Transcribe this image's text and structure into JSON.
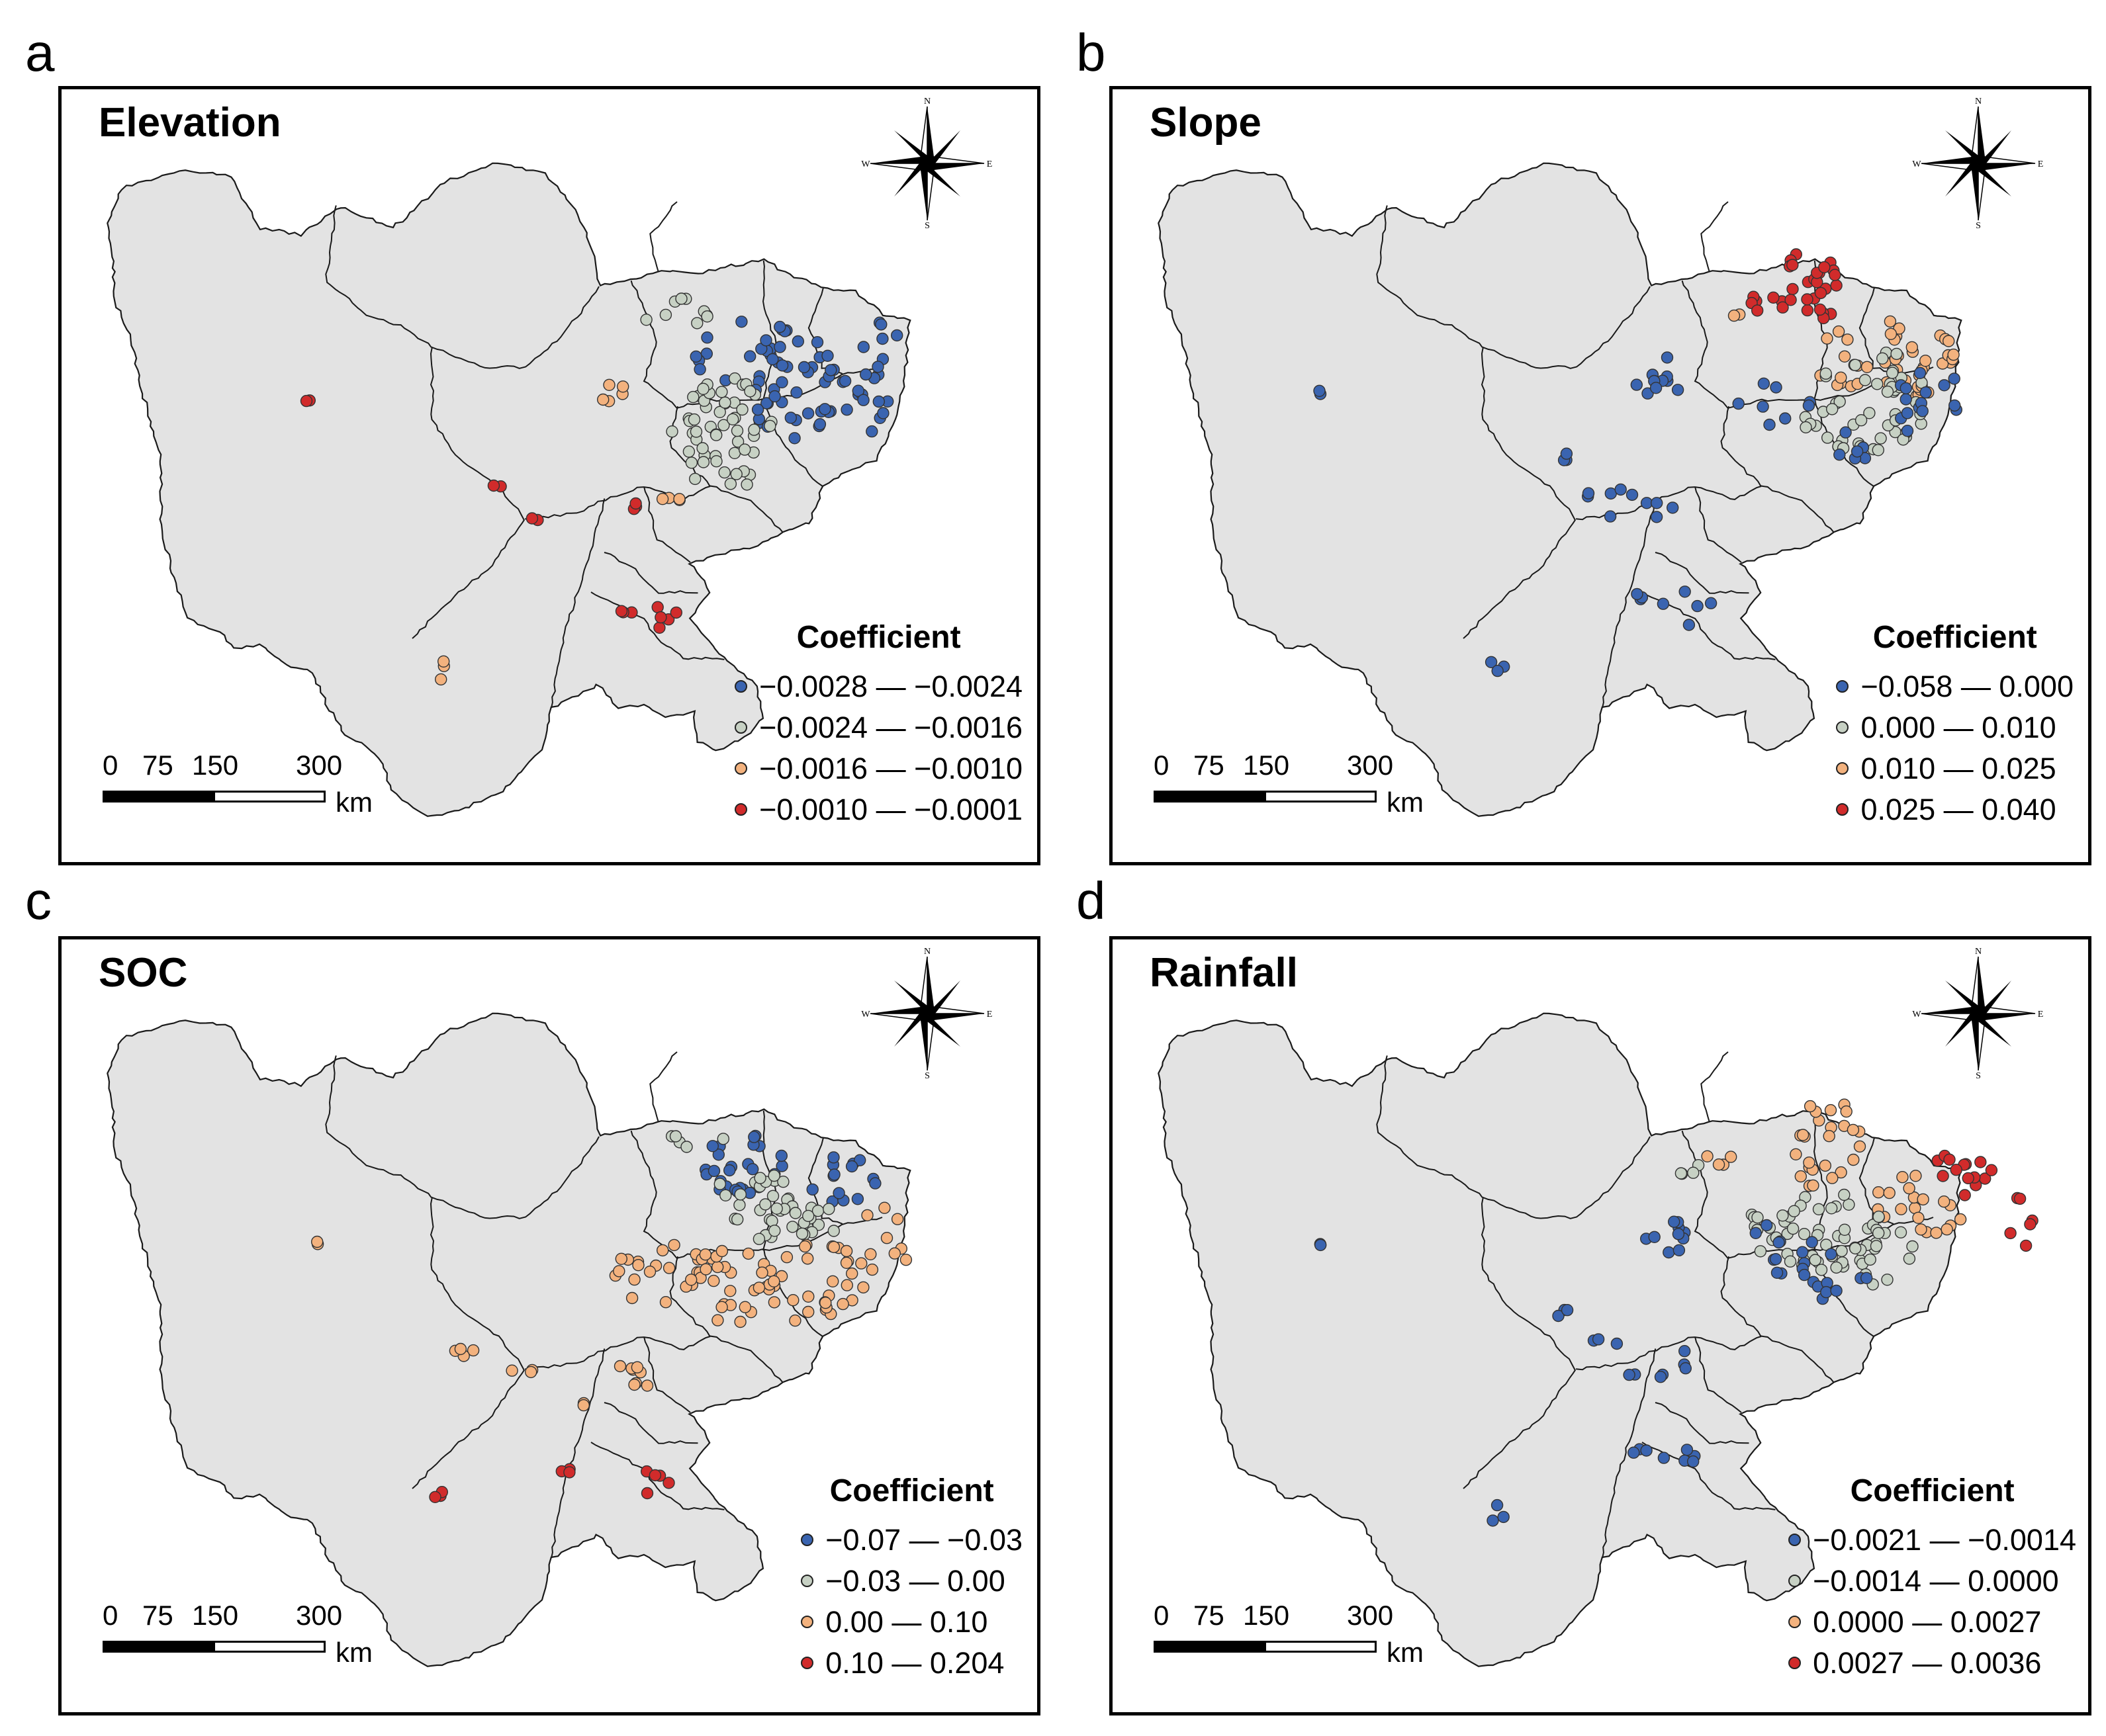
{
  "figure": {
    "panels": [
      {
        "id": "a",
        "letter": "a",
        "title": "Elevation",
        "legend_title": "Coefficient",
        "classes": [
          {
            "label": "−0.0028 — −0.0024",
            "color": "#3a64b0"
          },
          {
            "label": "−0.0024 — −0.0016",
            "color": "#c7d1c4"
          },
          {
            "label": "−0.0016 — −0.0010",
            "color": "#f3b27e"
          },
          {
            "label": "−0.0010 — −0.0001",
            "color": "#d12b2b"
          }
        ]
      },
      {
        "id": "b",
        "letter": "b",
        "title": "Slope",
        "legend_title": "Coefficient",
        "classes": [
          {
            "label": "−0.058 — 0.000",
            "color": "#3a64b0"
          },
          {
            "label": "0.000 — 0.010",
            "color": "#c7d1c4"
          },
          {
            "label": "0.010 — 0.025",
            "color": "#f3b27e"
          },
          {
            "label": "0.025 — 0.040",
            "color": "#d12b2b"
          }
        ]
      },
      {
        "id": "c",
        "letter": "c",
        "title": "SOC",
        "legend_title": "Coefficient",
        "classes": [
          {
            "label": "−0.07 — −0.03",
            "color": "#3a64b0"
          },
          {
            "label": "−0.03 — 0.00",
            "color": "#c7d1c4"
          },
          {
            "label": "0.00 — 0.10",
            "color": "#f3b27e"
          },
          {
            "label": "0.10 — 0.204",
            "color": "#d12b2b"
          }
        ]
      },
      {
        "id": "d",
        "letter": "d",
        "title": "Rainfall",
        "legend_title": "Coefficient",
        "classes": [
          {
            "label": "−0.0021 — −0.0014",
            "color": "#3a64b0"
          },
          {
            "label": "−0.0014 — 0.0000",
            "color": "#c7d1c4"
          },
          {
            "label": "0.0000 — 0.0027",
            "color": "#f3b27e"
          },
          {
            "label": "0.0027 — 0.0036",
            "color": "#d12b2b"
          }
        ]
      }
    ],
    "scalebar": {
      "ticks": [
        "0",
        "75",
        "150",
        "300"
      ],
      "unit": "km"
    },
    "compass": {
      "n": "N",
      "s": "S",
      "e": "E",
      "w": "W"
    },
    "colors": {
      "land": "#e3e3e3",
      "border": "#1a1a1a"
    }
  }
}
